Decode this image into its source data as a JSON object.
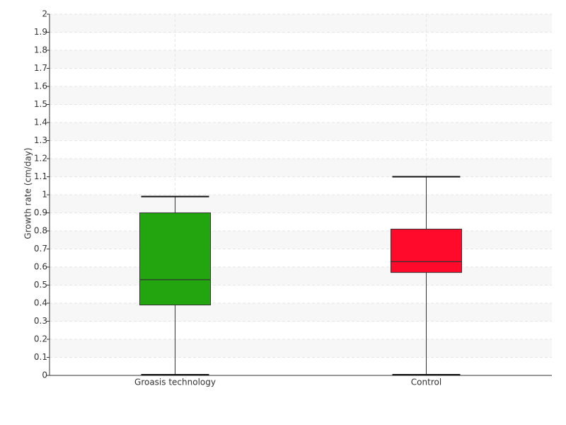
{
  "chart_data": {
    "type": "box",
    "y_label": "Growth rate (cm/day)",
    "categories": [
      "Groasis technology",
      "Control"
    ],
    "boxes": [
      {
        "min": 0,
        "q1": 0.39,
        "median": 0.53,
        "q3": 0.9,
        "max": 0.99,
        "color": "#22a50f"
      },
      {
        "min": 0,
        "q1": 0.57,
        "median": 0.63,
        "q3": 0.81,
        "max": 1.1,
        "color": "#ff0a2a"
      }
    ],
    "ylim": [
      0,
      2
    ],
    "yticks": [
      0,
      0.1,
      0.2,
      0.3,
      0.4,
      0.5,
      0.6,
      0.7,
      0.8,
      0.9,
      1,
      1.1,
      1.2,
      1.3,
      1.4,
      1.5,
      1.6,
      1.7,
      1.8,
      1.9,
      2
    ],
    "grid": true
  }
}
